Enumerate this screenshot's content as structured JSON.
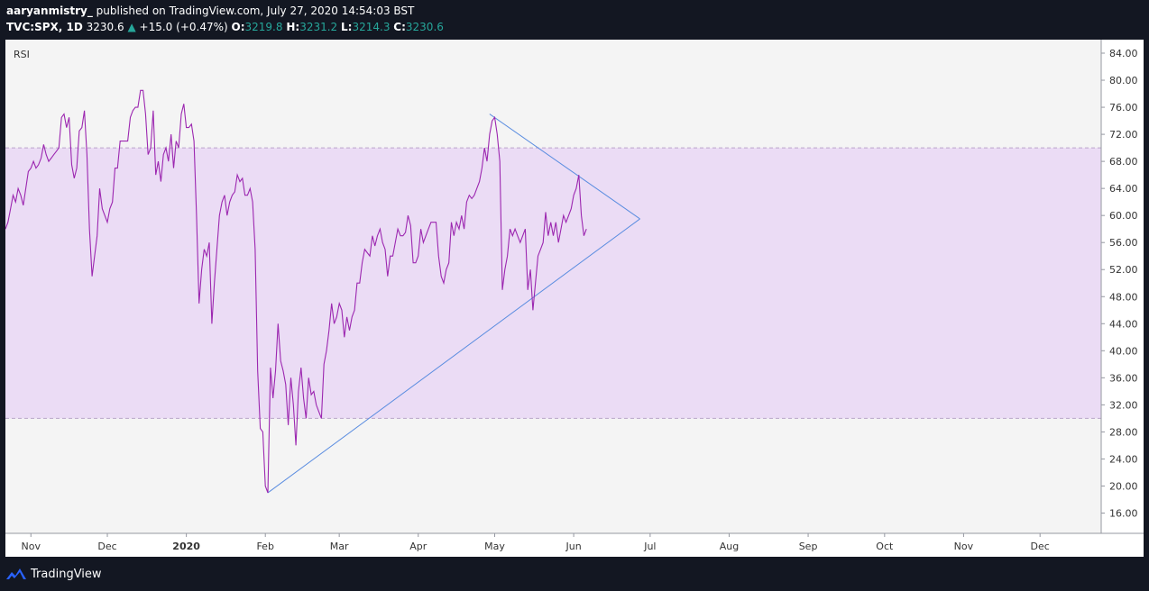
{
  "header": {
    "author": "aaryanmistry_",
    "published": "published on TradingView.com, July 27, 2020 14:54:03 BST",
    "symbol": "TVC:SPX, 1D",
    "last": "3230.6",
    "arrow": "▲",
    "change": "+15.0 (+0.47%)",
    "o_label": "O:",
    "o": "3219.8",
    "h_label": "H:",
    "h": "3231.2",
    "l_label": "L:",
    "l": "3214.3",
    "c_label": "C:",
    "c": "3230.6"
  },
  "footer": {
    "brand": "TradingView"
  },
  "colors": {
    "rsi_line": "#9c27b0",
    "band_fill": "#ebdcf5",
    "trendline": "#5b8de0",
    "chart_bg": "#f4f4f4"
  },
  "chart_data": {
    "type": "line",
    "title": "RSI",
    "ylim": [
      13,
      86
    ],
    "y_ticks": [
      "16.00",
      "20.00",
      "24.00",
      "28.00",
      "32.00",
      "36.00",
      "40.00",
      "44.00",
      "48.00",
      "52.00",
      "56.00",
      "60.00",
      "64.00",
      "68.00",
      "72.00",
      "76.00",
      "80.00",
      "84.00"
    ],
    "band": [
      30,
      70
    ],
    "x_labels": [
      {
        "label": "Nov",
        "day": 31
      },
      {
        "label": "Dec",
        "day": 61
      },
      {
        "label": "2020",
        "day": 92
      },
      {
        "label": "Feb",
        "day": 123
      },
      {
        "label": "Mar",
        "day": 152
      },
      {
        "label": "Apr",
        "day": 183
      },
      {
        "label": "May",
        "day": 213
      },
      {
        "label": "Jun",
        "day": 244
      },
      {
        "label": "Jul",
        "day": 274
      },
      {
        "label": "Aug",
        "day": 305
      },
      {
        "label": "Sep",
        "day": 336
      },
      {
        "label": "Oct",
        "day": 366
      },
      {
        "label": "Nov",
        "day": 397
      },
      {
        "label": "Dec",
        "day": 427
      }
    ],
    "xlim": [
      21,
      451
    ],
    "series": [
      {
        "points": [
          [
            21,
            58
          ],
          [
            22,
            59
          ],
          [
            23,
            61
          ],
          [
            24,
            63
          ],
          [
            25,
            62
          ],
          [
            26,
            64
          ],
          [
            27,
            63
          ],
          [
            28,
            61.5
          ],
          [
            29,
            64
          ],
          [
            30,
            66.5
          ],
          [
            31,
            67
          ],
          [
            32,
            68
          ],
          [
            33,
            67
          ],
          [
            34,
            67.5
          ],
          [
            35,
            68.5
          ],
          [
            36,
            70.5
          ],
          [
            37,
            69
          ],
          [
            38,
            68
          ],
          [
            39,
            68.5
          ],
          [
            40,
            69
          ],
          [
            41,
            69.5
          ],
          [
            42,
            70
          ],
          [
            43,
            74.5
          ],
          [
            44,
            75
          ],
          [
            45,
            73
          ],
          [
            46,
            74.5
          ],
          [
            47,
            67.5
          ],
          [
            48,
            65.5
          ],
          [
            49,
            67
          ],
          [
            50,
            72.5
          ],
          [
            51,
            73
          ],
          [
            52,
            75.5
          ],
          [
            53,
            69
          ],
          [
            54,
            58
          ],
          [
            55,
            51
          ],
          [
            56,
            54
          ],
          [
            57,
            57
          ],
          [
            58,
            64
          ],
          [
            59,
            61
          ],
          [
            60,
            60
          ],
          [
            61,
            59
          ],
          [
            62,
            61
          ],
          [
            63,
            62
          ],
          [
            64,
            67
          ],
          [
            65,
            67
          ],
          [
            66,
            71
          ],
          [
            67,
            71
          ],
          [
            68,
            71
          ],
          [
            69,
            71
          ],
          [
            70,
            74.5
          ],
          [
            71,
            75.5
          ],
          [
            72,
            76
          ],
          [
            73,
            76
          ],
          [
            74,
            78.5
          ],
          [
            75,
            78.5
          ],
          [
            76,
            75
          ],
          [
            77,
            69
          ],
          [
            78,
            70
          ],
          [
            79,
            75.5
          ],
          [
            80,
            66
          ],
          [
            81,
            68
          ],
          [
            82,
            65
          ],
          [
            83,
            69
          ],
          [
            84,
            70
          ],
          [
            85,
            68
          ],
          [
            86,
            72
          ],
          [
            87,
            67
          ],
          [
            88,
            71
          ],
          [
            89,
            70
          ],
          [
            90,
            75
          ],
          [
            91,
            76.5
          ],
          [
            92,
            73
          ],
          [
            93,
            73
          ],
          [
            94,
            73.5
          ],
          [
            95,
            71
          ],
          [
            96,
            60
          ],
          [
            97,
            47
          ],
          [
            98,
            52
          ],
          [
            99,
            55
          ],
          [
            100,
            54
          ],
          [
            101,
            56
          ],
          [
            102,
            44
          ],
          [
            103,
            50
          ],
          [
            104,
            55
          ],
          [
            105,
            60
          ],
          [
            106,
            62
          ],
          [
            107,
            63
          ],
          [
            108,
            60
          ],
          [
            109,
            62
          ],
          [
            110,
            63
          ],
          [
            111,
            63.5
          ],
          [
            112,
            66
          ],
          [
            113,
            65
          ],
          [
            114,
            65.5
          ],
          [
            115,
            63
          ],
          [
            116,
            63
          ],
          [
            117,
            64
          ],
          [
            118,
            62
          ],
          [
            119,
            55
          ],
          [
            120,
            37
          ],
          [
            121,
            28.5
          ],
          [
            122,
            28
          ],
          [
            123,
            20
          ],
          [
            124,
            19
          ],
          [
            125,
            37.5
          ],
          [
            126,
            33
          ],
          [
            127,
            37
          ],
          [
            128,
            44
          ],
          [
            129,
            38.5
          ],
          [
            130,
            37
          ],
          [
            131,
            35
          ],
          [
            132,
            29
          ],
          [
            133,
            36
          ],
          [
            134,
            32
          ],
          [
            135,
            26
          ],
          [
            136,
            34
          ],
          [
            137,
            37.5
          ],
          [
            138,
            33
          ],
          [
            139,
            30
          ],
          [
            140,
            36
          ],
          [
            141,
            33.5
          ],
          [
            142,
            34
          ],
          [
            143,
            32
          ],
          [
            144,
            31
          ],
          [
            145,
            30
          ],
          [
            146,
            38
          ],
          [
            147,
            40
          ],
          [
            148,
            43
          ],
          [
            149,
            47
          ],
          [
            150,
            44
          ],
          [
            151,
            45
          ],
          [
            152,
            47
          ],
          [
            153,
            46
          ],
          [
            154,
            42
          ],
          [
            155,
            45
          ],
          [
            156,
            43
          ],
          [
            157,
            45
          ],
          [
            158,
            46
          ],
          [
            159,
            50
          ],
          [
            160,
            50
          ],
          [
            161,
            53
          ],
          [
            162,
            55
          ],
          [
            163,
            54.5
          ],
          [
            164,
            54
          ],
          [
            165,
            57
          ],
          [
            166,
            55.5
          ],
          [
            167,
            57
          ],
          [
            168,
            58
          ],
          [
            169,
            56
          ],
          [
            170,
            55
          ],
          [
            171,
            51
          ],
          [
            172,
            54
          ],
          [
            173,
            54
          ],
          [
            174,
            56
          ],
          [
            175,
            58
          ],
          [
            176,
            57
          ],
          [
            177,
            57
          ],
          [
            178,
            57.5
          ],
          [
            179,
            60
          ],
          [
            180,
            58.5
          ],
          [
            181,
            53
          ],
          [
            182,
            53
          ],
          [
            183,
            54
          ],
          [
            184,
            58
          ],
          [
            185,
            56
          ],
          [
            186,
            57
          ],
          [
            187,
            58
          ],
          [
            188,
            59
          ],
          [
            189,
            59
          ],
          [
            190,
            59
          ],
          [
            191,
            54
          ],
          [
            192,
            51
          ],
          [
            193,
            50
          ],
          [
            194,
            52
          ],
          [
            195,
            53
          ],
          [
            196,
            59
          ],
          [
            197,
            57
          ],
          [
            198,
            59
          ],
          [
            199,
            58
          ],
          [
            200,
            60
          ],
          [
            201,
            58
          ],
          [
            202,
            62
          ],
          [
            203,
            63
          ],
          [
            204,
            62.5
          ],
          [
            205,
            63
          ],
          [
            206,
            64
          ],
          [
            207,
            65
          ],
          [
            208,
            67
          ],
          [
            209,
            70
          ],
          [
            210,
            68
          ],
          [
            211,
            72
          ],
          [
            212,
            74
          ],
          [
            213,
            74.5
          ],
          [
            214,
            72
          ],
          [
            215,
            68
          ],
          [
            216,
            49
          ],
          [
            217,
            52
          ],
          [
            218,
            54
          ],
          [
            219,
            58
          ],
          [
            220,
            57
          ],
          [
            221,
            58
          ],
          [
            222,
            57
          ],
          [
            223,
            56
          ],
          [
            224,
            57
          ],
          [
            225,
            58
          ],
          [
            226,
            49
          ],
          [
            227,
            52
          ],
          [
            228,
            46
          ],
          [
            229,
            50
          ],
          [
            230,
            54
          ],
          [
            231,
            55
          ],
          [
            232,
            56
          ],
          [
            233,
            60.5
          ],
          [
            234,
            57
          ],
          [
            235,
            59
          ],
          [
            236,
            57
          ],
          [
            237,
            59
          ],
          [
            238,
            56
          ],
          [
            239,
            58
          ],
          [
            240,
            60
          ],
          [
            241,
            59
          ],
          [
            242,
            60
          ],
          [
            243,
            61
          ],
          [
            244,
            63
          ],
          [
            245,
            64
          ],
          [
            246,
            66
          ],
          [
            247,
            60
          ],
          [
            248,
            57
          ],
          [
            249,
            58
          ]
        ]
      }
    ],
    "trendlines": [
      {
        "from": [
          124,
          19
        ],
        "to": [
          270,
          59.5
        ]
      },
      {
        "from": [
          211,
          75
        ],
        "to": [
          270,
          59.5
        ]
      }
    ]
  }
}
